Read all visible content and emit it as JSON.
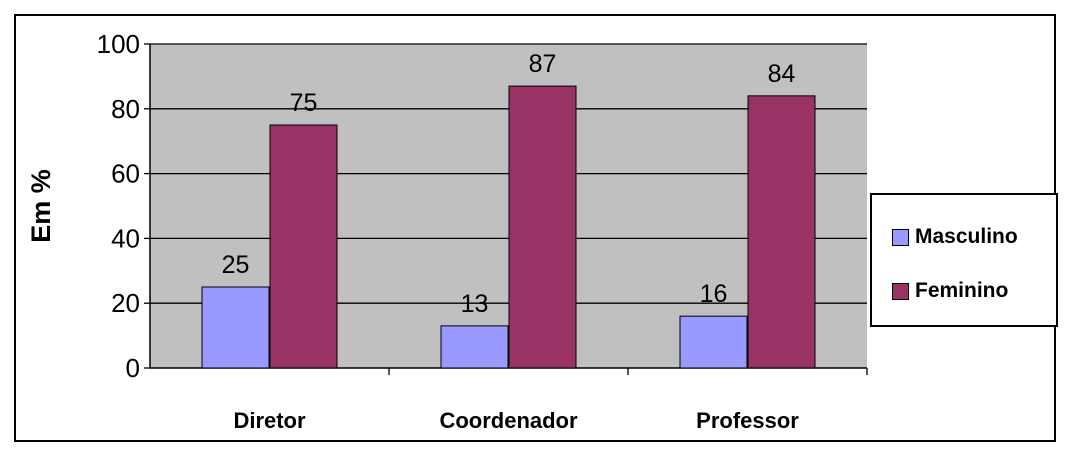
{
  "chart_data": {
    "type": "bar",
    "categories": [
      "Diretor",
      "Coordenador",
      "Professor"
    ],
    "series": [
      {
        "name": "Masculino",
        "values": [
          25,
          13,
          16
        ],
        "color": "#9999ff"
      },
      {
        "name": "Feminino",
        "values": [
          75,
          87,
          84
        ],
        "color": "#993366"
      }
    ],
    "data_labels": [
      [
        "25",
        "13",
        "16"
      ],
      [
        "75",
        "87",
        "84"
      ]
    ],
    "title": "",
    "xlabel": "",
    "ylabel": "Em %",
    "ylim": [
      0,
      100
    ],
    "yticks": [
      "0",
      "20",
      "40",
      "60",
      "80",
      "100"
    ],
    "grid": true,
    "plot_background": "#c0c0c0",
    "legend_position": "right"
  }
}
